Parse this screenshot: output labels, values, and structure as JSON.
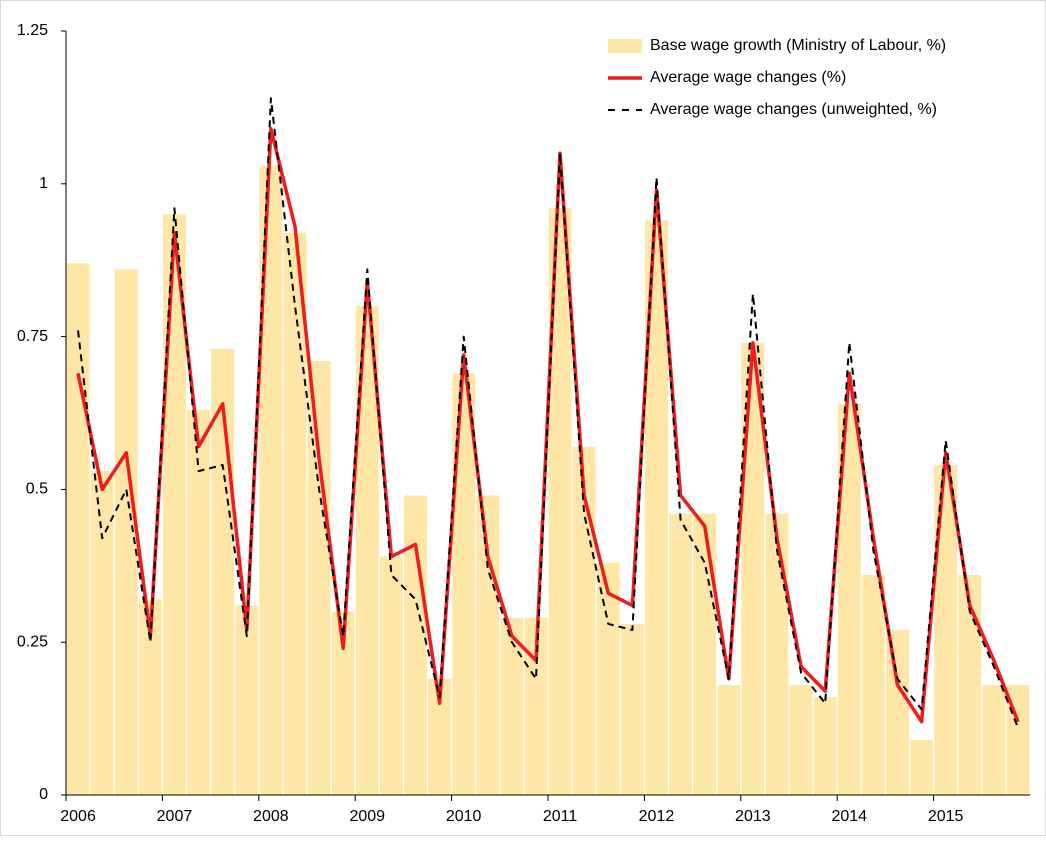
{
  "chart_data": {
    "type": "bar",
    "categories": [
      "2006",
      null,
      null,
      null,
      "2007",
      null,
      null,
      null,
      "2008",
      null,
      null,
      null,
      "2009",
      null,
      null,
      null,
      "2010",
      null,
      null,
      null,
      "2011",
      null,
      null,
      null,
      "2012",
      null,
      null,
      null,
      "2013",
      null,
      null,
      null,
      "2014",
      null,
      null,
      null,
      "2015",
      null,
      null,
      null
    ],
    "series": [
      {
        "name": "Base wage growth (Ministry of Labour, %)",
        "type": "bar",
        "color": "#fde6a6",
        "values": [
          0.87,
          0.53,
          0.86,
          0.32,
          0.95,
          0.63,
          0.73,
          0.31,
          1.03,
          0.92,
          0.71,
          0.3,
          0.8,
          0.39,
          0.49,
          0.19,
          0.69,
          0.49,
          0.29,
          0.29,
          0.96,
          0.57,
          0.38,
          0.28,
          0.94,
          0.46,
          0.46,
          0.18,
          0.74,
          0.46,
          0.18,
          0.16,
          0.64,
          0.36,
          0.27,
          0.09,
          0.54,
          0.36,
          0.18,
          0.18
        ]
      },
      {
        "name": "Average wage changes  (%)",
        "type": "line",
        "color": "#ee1c1c",
        "dashed": false,
        "values": [
          0.69,
          0.5,
          0.56,
          0.26,
          0.92,
          0.57,
          0.64,
          0.27,
          1.09,
          0.93,
          0.55,
          0.24,
          0.84,
          0.39,
          0.41,
          0.15,
          0.72,
          0.39,
          0.26,
          0.22,
          1.05,
          0.49,
          0.33,
          0.31,
          0.99,
          0.49,
          0.44,
          0.19,
          0.74,
          0.42,
          0.21,
          0.17,
          0.69,
          0.42,
          0.18,
          0.12,
          0.56,
          0.31,
          0.22,
          0.12
        ]
      },
      {
        "name": "Average wage changes (unweighted, %)",
        "type": "line",
        "color": "#000000",
        "dashed": true,
        "values": [
          0.76,
          0.42,
          0.5,
          0.25,
          0.96,
          0.53,
          0.54,
          0.26,
          1.14,
          0.8,
          0.5,
          0.26,
          0.86,
          0.36,
          0.32,
          0.16,
          0.75,
          0.37,
          0.25,
          0.19,
          1.05,
          0.46,
          0.28,
          0.27,
          1.01,
          0.45,
          0.38,
          0.19,
          0.82,
          0.4,
          0.2,
          0.15,
          0.74,
          0.4,
          0.19,
          0.14,
          0.58,
          0.3,
          0.21,
          0.11
        ]
      }
    ],
    "ylim": [
      0,
      1.25
    ],
    "yticks": [
      0,
      0.25,
      0.5,
      0.75,
      1,
      1.25
    ],
    "legend": "top-right"
  }
}
